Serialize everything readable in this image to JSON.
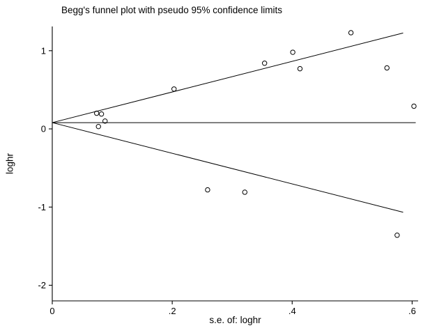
{
  "colors": {
    "background": "#ffffff",
    "line": "#000000",
    "marker": "#000000"
  },
  "chart_data": {
    "type": "scatter",
    "title": "Begg's funnel plot with pseudo 95% confidence limits",
    "xlabel": "s.e. of: loghr",
    "ylabel": "loghr",
    "xlim": [
      0,
      0.61
    ],
    "ylim": [
      -2.2,
      1.31
    ],
    "x_ticks": [
      0,
      0.2,
      0.4,
      0.6
    ],
    "x_tick_labels": [
      "0",
      ".2",
      ".4",
      ".6"
    ],
    "y_ticks": [
      -2,
      -1,
      0,
      1
    ],
    "y_tick_labels": [
      "-2",
      "-1",
      "0",
      "1"
    ],
    "grid": false,
    "legend": "none",
    "pooled_estimate": 0.08,
    "ci_multiplier": 1.96,
    "funnel_x_end": 0.585,
    "center_line_x_end": 0.606,
    "points_note": "each point is [s.e. of loghr, loghr], hollow circle markers",
    "points": [
      [
        0.074,
        0.2
      ],
      [
        0.082,
        0.19
      ],
      [
        0.077,
        0.03
      ],
      [
        0.088,
        0.1
      ],
      [
        0.203,
        0.51
      ],
      [
        0.354,
        0.84
      ],
      [
        0.401,
        0.98
      ],
      [
        0.413,
        0.77
      ],
      [
        0.498,
        1.23
      ],
      [
        0.558,
        0.78
      ],
      [
        0.603,
        0.29
      ],
      [
        0.259,
        -0.78
      ],
      [
        0.321,
        -0.81
      ],
      [
        0.575,
        -1.36
      ]
    ]
  }
}
